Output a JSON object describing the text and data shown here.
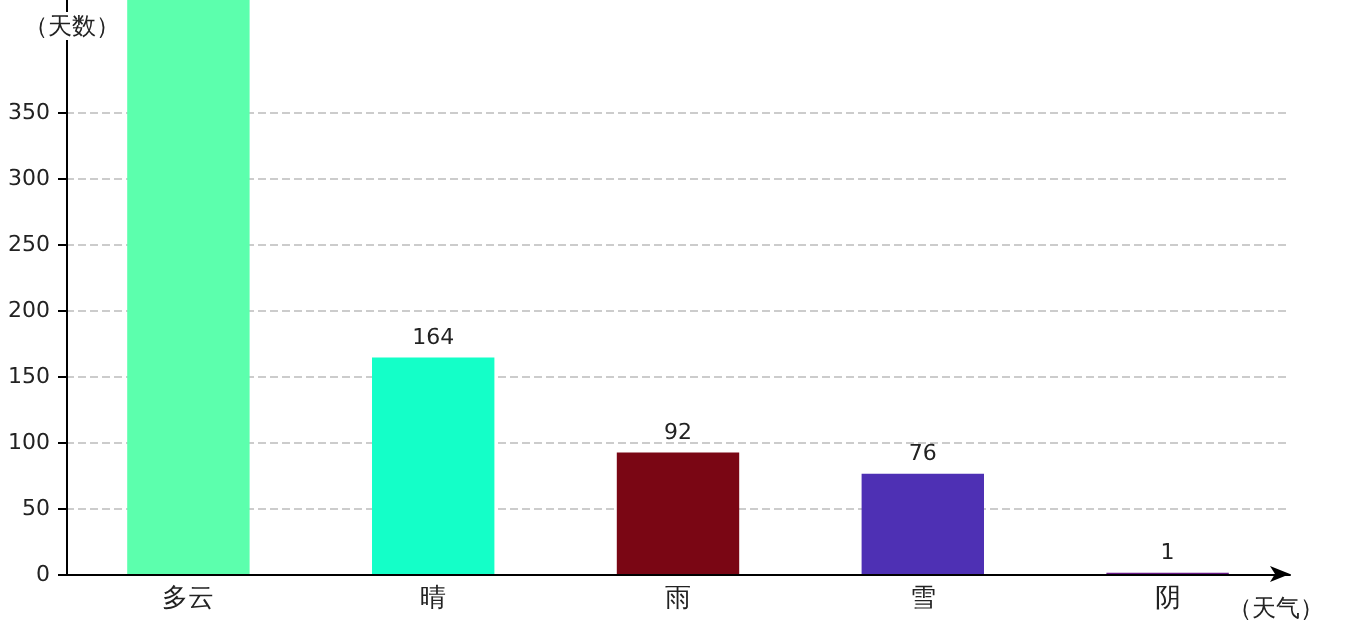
{
  "chart_data": {
    "type": "bar",
    "xlabel": "（天气）",
    "ylabel": "（天数）",
    "categories": [
      "多云",
      "晴",
      "雨",
      "雪",
      "阴"
    ],
    "values": [
      435,
      164,
      92,
      76,
      1
    ],
    "value_labels": [
      null,
      "164",
      "92",
      "76",
      "1"
    ],
    "colors": [
      "#5cffad",
      "#14ffc8",
      "#7a0614",
      "#4e30b4",
      "#6a1b8a"
    ],
    "ylim": [
      0,
      435
    ],
    "yticks": [
      0,
      50,
      100,
      150,
      200,
      250,
      300,
      350
    ],
    "grid": "y"
  }
}
